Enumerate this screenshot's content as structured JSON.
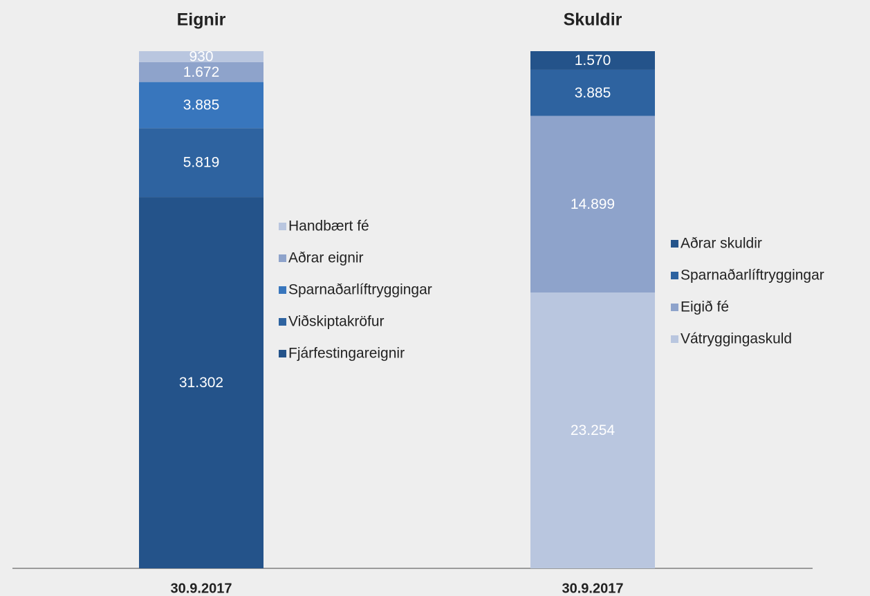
{
  "chart_data": [
    {
      "type": "bar",
      "title": "Eignir",
      "categories": [
        "30.9.2017"
      ],
      "series": [
        {
          "name": "Fjárfestingareignir",
          "color": "#24538a",
          "values": [
            31302
          ],
          "value_labels": [
            "31.302"
          ]
        },
        {
          "name": "Viðskiptakröfur",
          "color": "#2e63a0",
          "values": [
            5819
          ],
          "value_labels": [
            "5.819"
          ]
        },
        {
          "name": "Sparnaðarlíftryggingar",
          "color": "#3876bd",
          "values": [
            3885
          ],
          "value_labels": [
            "3.885"
          ]
        },
        {
          "name": "Aðrar eignir",
          "color": "#8ea3cb",
          "values": [
            1672
          ],
          "value_labels": [
            "1.672"
          ]
        },
        {
          "name": "Handbært fé",
          "color": "#b9c6df",
          "values": [
            930
          ],
          "value_labels": [
            "930"
          ]
        }
      ]
    },
    {
      "type": "bar",
      "title": "Skuldir",
      "categories": [
        "30.9.2017"
      ],
      "series": [
        {
          "name": "Vátryggingaskuld",
          "color": "#b9c6df",
          "values": [
            23254
          ],
          "value_labels": [
            "23.254"
          ]
        },
        {
          "name": "Eigið fé",
          "color": "#8ea3cb",
          "values": [
            14899
          ],
          "value_labels": [
            "14.899"
          ]
        },
        {
          "name": "Sparnaðarlíftryggingar",
          "color": "#2e63a0",
          "values": [
            3885
          ],
          "value_labels": [
            "3.885"
          ]
        },
        {
          "name": "Aðrar skuldir",
          "color": "#24538a",
          "values": [
            1570
          ],
          "value_labels": [
            "1.570"
          ]
        }
      ]
    }
  ]
}
